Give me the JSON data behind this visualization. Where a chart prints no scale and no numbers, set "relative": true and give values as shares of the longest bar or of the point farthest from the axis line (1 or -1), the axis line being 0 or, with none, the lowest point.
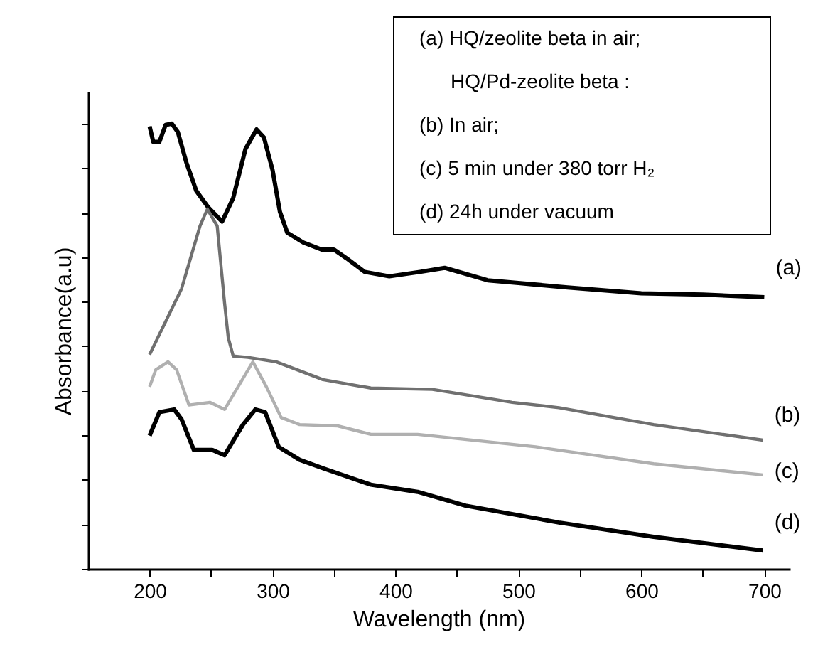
{
  "chart_data": {
    "type": "line",
    "xlabel": "Wavelength (nm)",
    "ylabel": "Absorbance(a.u)",
    "relative": true,
    "grid": false,
    "legend": false,
    "xlim": [
      150,
      720
    ],
    "xticks": [
      200,
      {
        "value": 250,
        "label": null
      },
      300,
      {
        "value": 350,
        "label": null
      },
      400,
      {
        "value": 450,
        "label": null
      },
      500,
      {
        "value": 550,
        "label": null
      },
      600,
      {
        "value": 650,
        "label": null
      },
      700
    ],
    "annotations": [
      "(a) HQ/zeolite beta in air;",
      "HQ/Pd-zeolite beta :",
      "(b) In air;",
      "(c) 5 min under 380 torr H₂",
      "(d) 24h under vacuum"
    ],
    "series": [
      {
        "name": "(a)",
        "color": "#000000",
        "x": [
          200,
          203,
          208,
          213,
          218,
          223,
          230,
          238,
          248,
          259,
          268,
          278,
          287,
          293,
          300,
          306,
          312,
          325,
          340,
          350,
          360,
          375,
          395,
          420,
          440,
          460,
          475,
          500,
          540,
          600,
          650,
          700
        ],
        "values": [
          0.994,
          0.959,
          0.959,
          0.997,
          1,
          0.981,
          0.912,
          0.849,
          0.811,
          0.78,
          0.833,
          0.943,
          0.987,
          0.969,
          0.896,
          0.802,
          0.755,
          0.733,
          0.717,
          0.717,
          0.698,
          0.667,
          0.657,
          0.667,
          0.676,
          0.66,
          0.648,
          0.642,
          0.632,
          0.619,
          0.616,
          0.61
        ]
      },
      {
        "name": "(b)",
        "color": "#707070",
        "x": [
          200,
          226,
          241,
          247,
          255,
          261,
          264,
          268,
          280,
          303,
          341,
          380,
          430,
          495,
          533,
          610,
          699
        ],
        "values": [
          0.481,
          0.629,
          0.77,
          0.808,
          0.77,
          0.597,
          0.519,
          0.478,
          0.475,
          0.465,
          0.425,
          0.406,
          0.403,
          0.374,
          0.362,
          0.324,
          0.289
        ]
      },
      {
        "name": "(c)",
        "color": "#b0b0b0",
        "x": [
          200,
          205,
          215,
          222,
          232,
          249,
          261,
          272,
          284,
          295,
          307,
          322,
          353,
          380,
          418,
          514,
          610,
          699
        ],
        "values": [
          0.409,
          0.447,
          0.465,
          0.447,
          0.368,
          0.374,
          0.358,
          0.409,
          0.465,
          0.409,
          0.34,
          0.324,
          0.321,
          0.302,
          0.302,
          0.274,
          0.236,
          0.211
        ]
      },
      {
        "name": "(d)",
        "color": "#000000",
        "x": [
          200,
          208,
          220,
          226,
          236,
          251,
          261,
          276,
          286,
          294,
          305,
          322,
          341,
          380,
          418,
          457,
          533,
          610,
          699
        ],
        "values": [
          0.299,
          0.352,
          0.358,
          0.336,
          0.267,
          0.267,
          0.255,
          0.324,
          0.358,
          0.352,
          0.274,
          0.245,
          0.226,
          0.189,
          0.173,
          0.142,
          0.104,
          0.072,
          0.041
        ]
      }
    ]
  }
}
